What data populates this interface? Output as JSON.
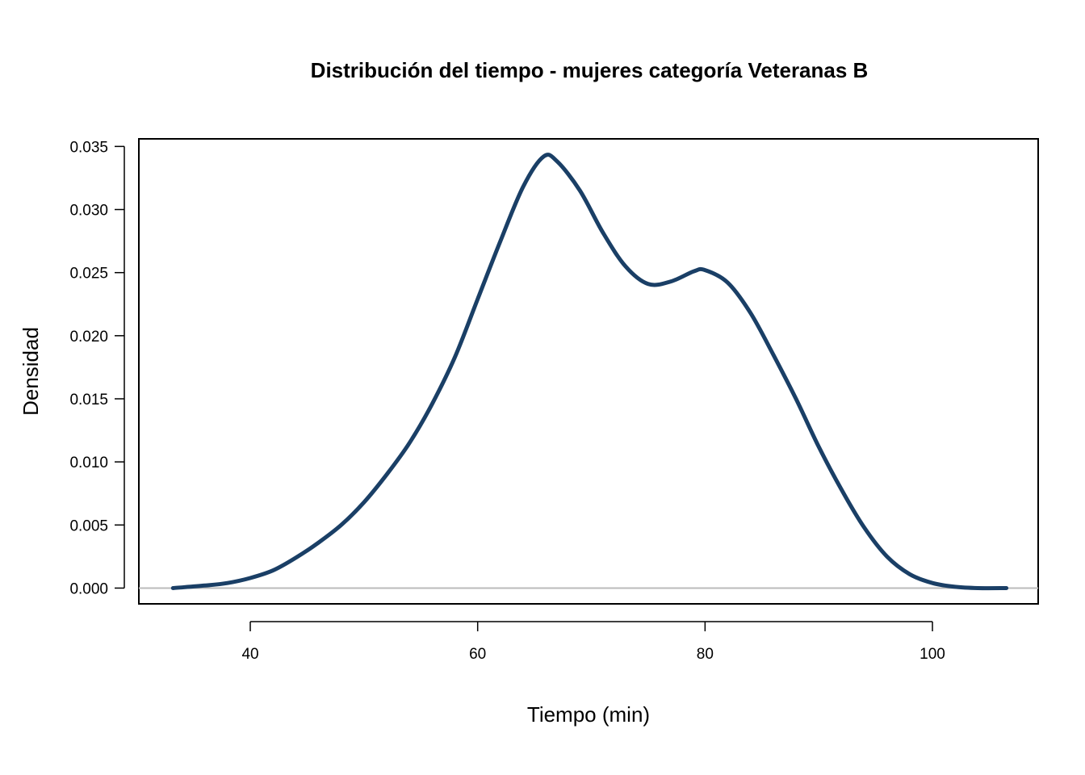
{
  "chart_data": {
    "type": "line",
    "title": "Distribución del tiempo - mujeres categoría Veteranas B",
    "xlabel": "Tiempo (min)",
    "ylabel": "Densidad",
    "xlim": [
      30.2,
      109.3
    ],
    "ylim": [
      -0.00125,
      0.0356
    ],
    "x_ticks": [
      40,
      60,
      80,
      100
    ],
    "x_tick_labels": [
      "40",
      "60",
      "80",
      "100"
    ],
    "y_ticks": [
      0.0,
      0.005,
      0.01,
      0.015,
      0.02,
      0.025,
      0.03,
      0.035
    ],
    "y_tick_labels": [
      "0.000",
      "0.005",
      "0.010",
      "0.015",
      "0.020",
      "0.025",
      "0.030",
      "0.035"
    ],
    "grid": false,
    "baseline": 0,
    "series": [
      {
        "color": "#1a3f66",
        "x": [
          33.2,
          36,
          38,
          40,
          42,
          44,
          46,
          48,
          50,
          52,
          54,
          56,
          58,
          60,
          62,
          64,
          65.8,
          67,
          69,
          71,
          73,
          75,
          77,
          79,
          80,
          82,
          84,
          86,
          88,
          90,
          92,
          94,
          96,
          98,
          100,
          102,
          104,
          106.5
        ],
        "y": [
          0.0,
          0.0002,
          0.0004,
          0.0008,
          0.0014,
          0.0024,
          0.0036,
          0.005,
          0.0068,
          0.009,
          0.0115,
          0.0146,
          0.0183,
          0.0229,
          0.0275,
          0.0318,
          0.0342,
          0.0338,
          0.0315,
          0.0282,
          0.0255,
          0.0241,
          0.0243,
          0.0251,
          0.0252,
          0.0242,
          0.0218,
          0.0185,
          0.015,
          0.0112,
          0.0078,
          0.0048,
          0.0025,
          0.0011,
          0.0004,
          0.0001,
          0.0,
          0.0
        ]
      }
    ]
  }
}
